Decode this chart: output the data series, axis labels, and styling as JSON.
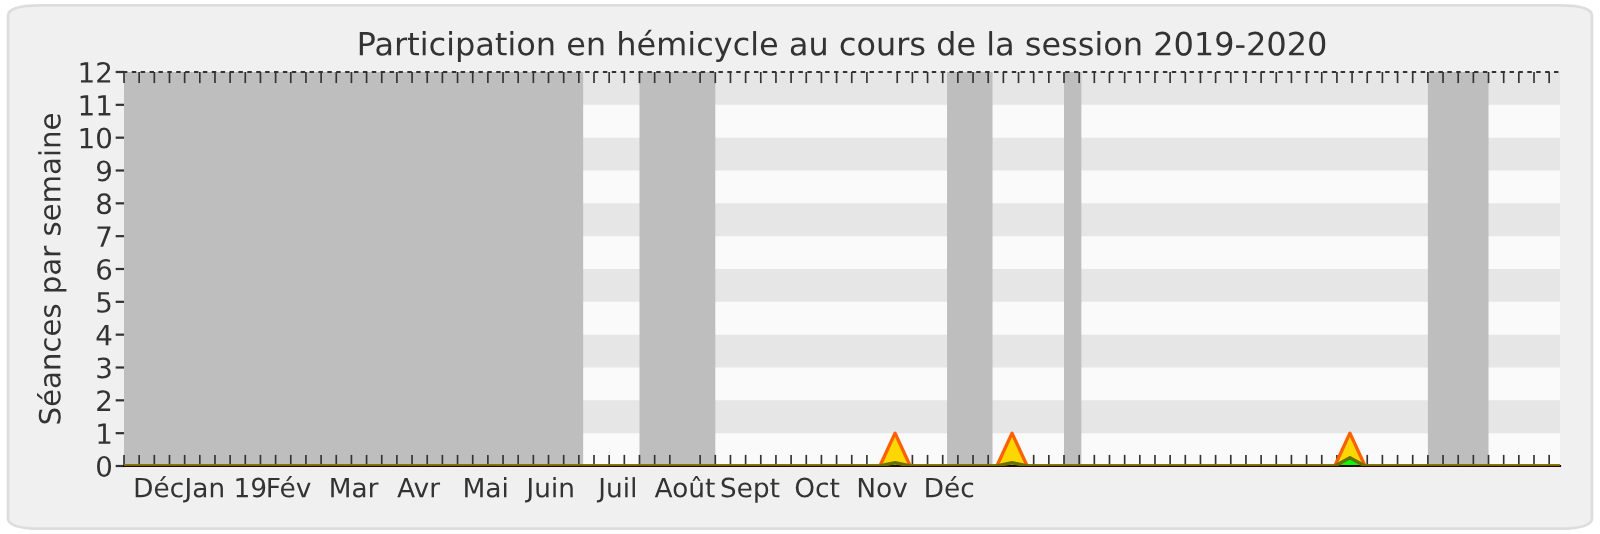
{
  "chart_data": {
    "type": "area",
    "title": "Participation en hémicycle au cours de la session 2019-2020",
    "ylabel": "Séances par semaine",
    "series": [
      {
        "color": "#ffd700",
        "x": [
          "2018-11-30",
          "2019-11-14",
          "2019-11-21",
          "2019-11-28",
          "2020-01-07",
          "2020-01-14",
          "2020-01-21",
          "2020-06-11",
          "2020-06-18",
          "2020-06-25",
          "2020-09-23"
        ],
        "values": [
          0,
          0,
          1,
          0,
          0,
          1,
          0,
          0,
          1,
          0,
          0
        ]
      },
      {
        "color": "#00ff00",
        "x": [
          "2018-11-30",
          "2019-11-14",
          "2019-11-21",
          "2019-11-28",
          "2020-01-07",
          "2020-01-14",
          "2020-01-21",
          "2020-06-11",
          "2020-06-18",
          "2020-06-25",
          "2020-09-23"
        ],
        "values": [
          0,
          0,
          0.1,
          0,
          0,
          0.1,
          0,
          0,
          0.25,
          0,
          0
        ]
      }
    ],
    "xlim": [
      "2018-11-30",
      "2020-09-23"
    ],
    "ylim": [
      0,
      12
    ],
    "yticks": [
      0,
      1,
      2,
      3,
      4,
      5,
      6,
      7,
      8,
      9,
      10,
      11,
      12
    ],
    "xticks": [
      {
        "value": "2018-12-16",
        "label": "Déc"
      },
      {
        "value": "2019-01-16",
        "label": "Jan 19"
      },
      {
        "value": "2019-02-14",
        "label": "Fév"
      },
      {
        "value": "2019-03-16",
        "label": "Mar"
      },
      {
        "value": "2019-04-15",
        "label": "Avr"
      },
      {
        "value": "2019-05-16",
        "label": "Mai"
      },
      {
        "value": "2019-06-15",
        "label": "Juin"
      },
      {
        "value": "2019-07-16",
        "label": "Juil"
      },
      {
        "value": "2019-08-16",
        "label": "Août"
      },
      {
        "value": "2019-09-15",
        "label": "Sept"
      },
      {
        "value": "2019-10-16",
        "label": "Oct"
      },
      {
        "value": "2019-11-15",
        "label": "Nov"
      },
      {
        "value": "2019-12-16",
        "label": "Déc"
      }
    ],
    "bands": [
      {
        "axis": "x",
        "from": "2018-11-30",
        "to": "2019-06-30",
        "color": "#bebebe"
      },
      {
        "axis": "x",
        "from": "2019-07-26",
        "to": "2019-08-30",
        "color": "#bebebe"
      },
      {
        "axis": "x",
        "from": "2019-12-15",
        "to": "2020-01-05",
        "color": "#bebebe"
      },
      {
        "axis": "x",
        "from": "2020-02-07",
        "to": "2020-02-15",
        "color": "#bebebe"
      },
      {
        "axis": "x",
        "from": "2020-07-24",
        "to": "2020-08-21",
        "color": "#bebebe"
      },
      {
        "axis": "y",
        "from": 1,
        "to": 2,
        "color": "#e6e6e6"
      },
      {
        "axis": "y",
        "from": 3,
        "to": 4,
        "color": "#e6e6e6"
      },
      {
        "axis": "y",
        "from": 5,
        "to": 6,
        "color": "#e6e6e6"
      },
      {
        "axis": "y",
        "from": 7,
        "to": 8,
        "color": "#e6e6e6"
      },
      {
        "axis": "y",
        "from": 9,
        "to": 10,
        "color": "#e6e6e6"
      },
      {
        "axis": "y",
        "from": 11,
        "to": 12,
        "color": "#e6e6e6"
      }
    ]
  }
}
